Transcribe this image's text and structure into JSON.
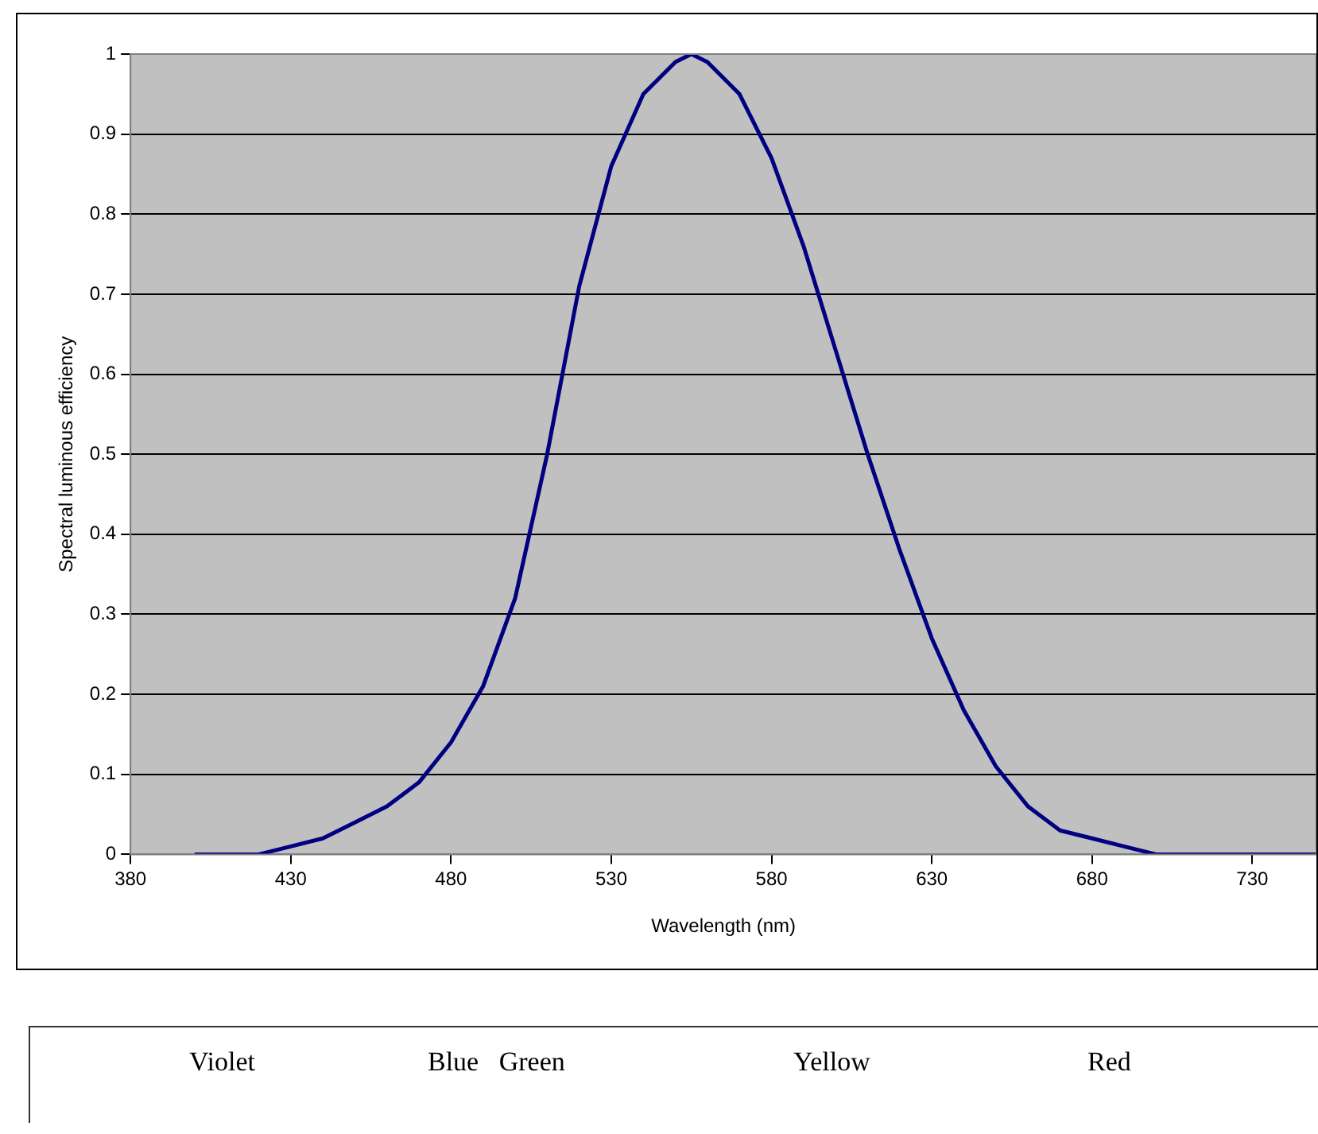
{
  "chart_data": {
    "type": "line",
    "xlabel": "Wavelength (nm)",
    "ylabel": "Spectral luminous efficiency",
    "x": [
      400,
      410,
      420,
      430,
      440,
      450,
      460,
      470,
      480,
      490,
      500,
      510,
      520,
      530,
      540,
      550,
      555,
      560,
      570,
      580,
      590,
      600,
      610,
      620,
      630,
      640,
      650,
      660,
      670,
      680,
      690,
      700,
      710,
      720,
      730,
      740,
      750
    ],
    "series": [
      {
        "color": "#000080",
        "values": [
          0,
          0,
          0,
          0.01,
          0.02,
          0.04,
          0.06,
          0.09,
          0.14,
          0.21,
          0.32,
          0.5,
          0.71,
          0.86,
          0.95,
          0.99,
          1,
          0.99,
          0.95,
          0.87,
          0.76,
          0.63,
          0.5,
          0.38,
          0.27,
          0.18,
          0.11,
          0.06,
          0.03,
          0.02,
          0.01,
          0,
          0,
          0,
          0,
          0,
          0
        ]
      }
    ],
    "xlim": [
      380,
      750
    ],
    "xticks": [
      380,
      430,
      480,
      530,
      580,
      630,
      680,
      730
    ],
    "ylim": [
      0,
      1
    ],
    "yticks": [
      0,
      0.1,
      0.2,
      0.3,
      0.4,
      0.5,
      0.6,
      0.7,
      0.8,
      0.9,
      1
    ],
    "grid": "y",
    "marker": "none",
    "line_style": "solid",
    "legend": false,
    "annotations": [
      "Violet",
      "Blue   Green",
      "Yellow",
      "Red"
    ]
  }
}
